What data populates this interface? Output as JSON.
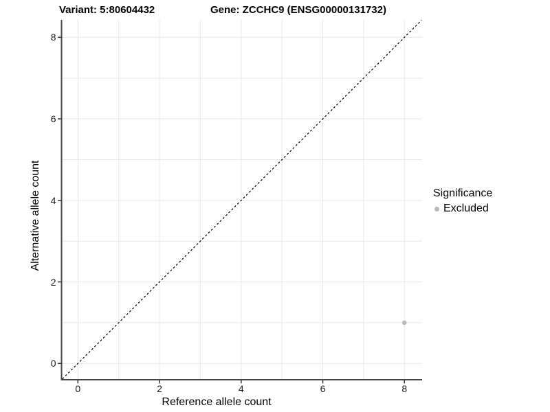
{
  "titles": {
    "variant": "Variant: 5:80604432",
    "gene": "Gene: ZCCHC9 (ENSG00000131732)"
  },
  "chart_data": {
    "type": "scatter",
    "title_left": "Variant: 5:80604432",
    "title_right": "Gene: ZCCHC9 (ENSG00000131732)",
    "xlabel": "Reference allele count",
    "ylabel": "Alternative allele count",
    "xlim": [
      -0.4,
      8.45
    ],
    "ylim": [
      -0.4,
      8.45
    ],
    "x_ticks": [
      0,
      2,
      4,
      6,
      8
    ],
    "y_ticks": [
      0,
      2,
      4,
      6,
      8
    ],
    "gridlines": {
      "min": 0,
      "max": 8,
      "every": 1,
      "color": "#e8e8e8"
    },
    "identity_line": {
      "style": "dashed",
      "color": "#000000",
      "from": -0.38,
      "to": 8.42
    },
    "series": [
      {
        "name": "Excluded",
        "color": "#b9b9b9",
        "points": [
          {
            "x": 8,
            "y": 1
          }
        ]
      }
    ],
    "legend": {
      "title": "Significance",
      "position": "right",
      "entries": [
        {
          "label": "Excluded",
          "color": "#b9b9b9"
        }
      ]
    },
    "colors": {
      "background": "#ffffff",
      "axis": "#454545",
      "tick": "#333333",
      "grid": "#e8e8e8"
    }
  }
}
